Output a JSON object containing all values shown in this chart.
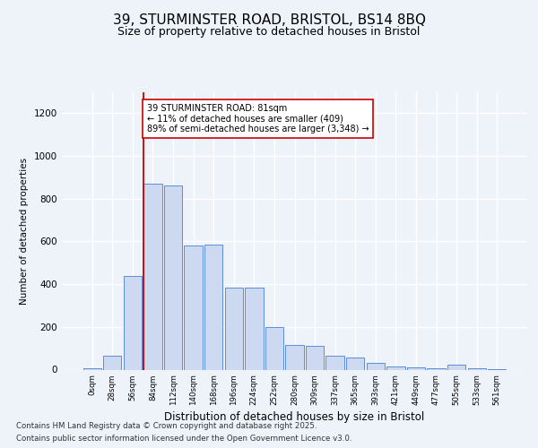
{
  "title1": "39, STURMINSTER ROAD, BRISTOL, BS14 8BQ",
  "title2": "Size of property relative to detached houses in Bristol",
  "xlabel": "Distribution of detached houses by size in Bristol",
  "ylabel": "Number of detached properties",
  "bar_labels": [
    "0sqm",
    "28sqm",
    "56sqm",
    "84sqm",
    "112sqm",
    "140sqm",
    "168sqm",
    "196sqm",
    "224sqm",
    "252sqm",
    "280sqm",
    "309sqm",
    "337sqm",
    "365sqm",
    "393sqm",
    "421sqm",
    "449sqm",
    "477sqm",
    "505sqm",
    "533sqm",
    "561sqm"
  ],
  "bar_values": [
    5,
    65,
    440,
    870,
    860,
    580,
    585,
    385,
    385,
    200,
    115,
    110,
    65,
    55,
    30,
    15,
    10,
    5,
    25,
    5,
    2
  ],
  "bar_color": "#ccd9f0",
  "bar_edge_color": "#5b8dd9",
  "ylim": [
    0,
    1300
  ],
  "yticks": [
    0,
    200,
    400,
    600,
    800,
    1000,
    1200
  ],
  "property_line_color": "#cc0000",
  "annotation_text": "39 STURMINSTER ROAD: 81sqm\n← 11% of detached houses are smaller (409)\n89% of semi-detached houses are larger (3,348) →",
  "annotation_box_color": "#ffffff",
  "annotation_box_edge": "#cc0000",
  "footer_line1": "Contains HM Land Registry data © Crown copyright and database right 2025.",
  "footer_line2": "Contains public sector information licensed under the Open Government Licence v3.0.",
  "background_color": "#eef2f9",
  "plot_background": "#eef2f9",
  "grid_color": "#ffffff",
  "title_fontsize": 11,
  "subtitle_fontsize": 9
}
